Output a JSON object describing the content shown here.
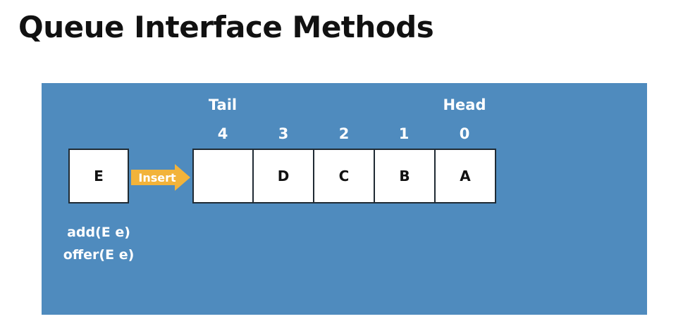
{
  "title": "Queue Interface Methods",
  "colors": {
    "panel": "#4f8bbe",
    "arrow": "#f2b33a",
    "box_border": "#1f2a33"
  },
  "queue": {
    "tail_label": "Tail",
    "head_label": "Head",
    "indices": [
      "4",
      "3",
      "2",
      "1",
      "0"
    ],
    "cells": [
      "",
      "D",
      "C",
      "B",
      "A"
    ]
  },
  "new_element": "E",
  "arrow_label": "Insert",
  "methods": [
    "add(E e)",
    "offer(E e)"
  ]
}
